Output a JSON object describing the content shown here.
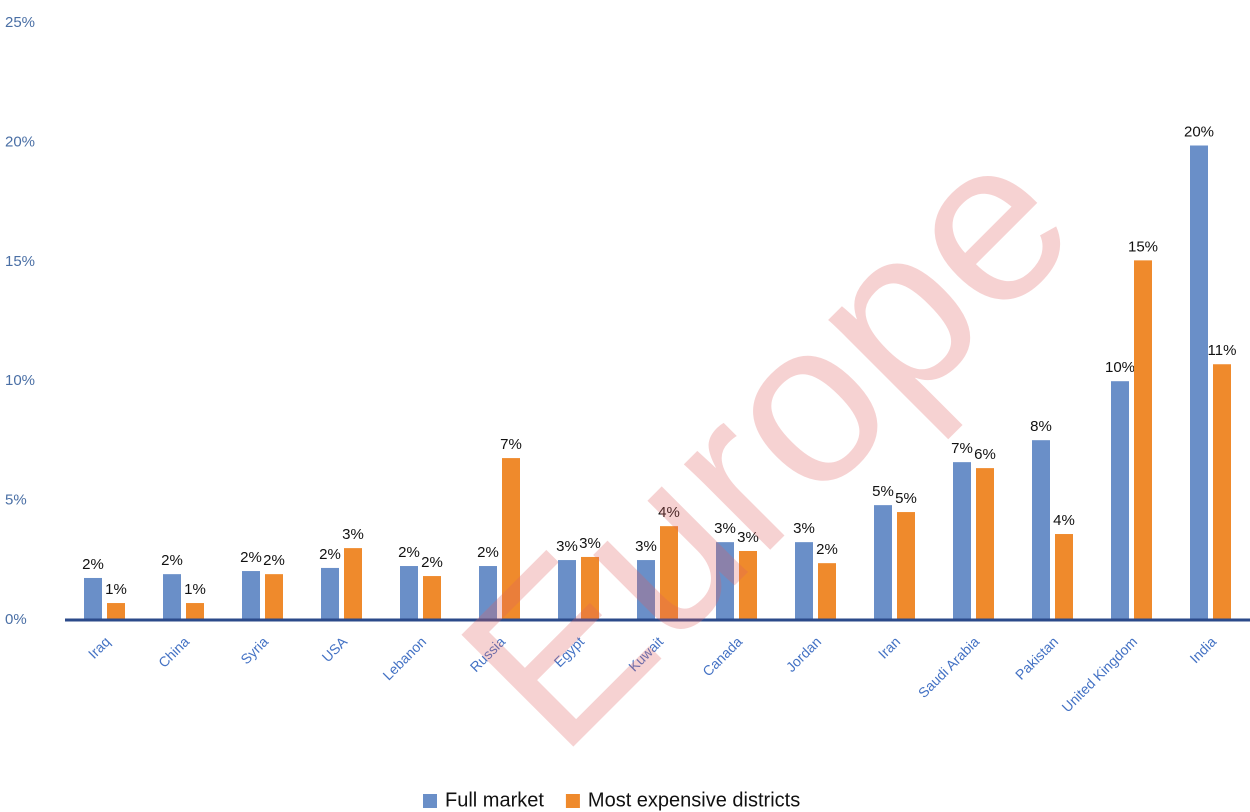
{
  "chart_data": {
    "type": "bar",
    "categories": [
      "Iraq",
      "China",
      "Syria",
      "USA",
      "Lebanon",
      "Russia",
      "Egypt",
      "Kuwait",
      "Canada",
      "Jordan",
      "Iran",
      "Saudi Arabia",
      "Pakistan",
      "United Kingdom",
      "India"
    ],
    "series": [
      {
        "name": "Full market",
        "color": "#6a8fc8",
        "values": [
          1.76,
          1.92,
          2.05,
          2.18,
          2.26,
          2.26,
          2.51,
          2.51,
          3.26,
          3.26,
          4.81,
          6.61,
          7.53,
          10.0,
          19.87
        ],
        "value_labels": [
          "2%",
          "2%",
          "2%",
          "2%",
          "2%",
          "2%",
          "3%",
          "3%",
          "3%",
          "3%",
          "5%",
          "7%",
          "8%",
          "10%",
          "20%"
        ]
      },
      {
        "name": "Most expensive districts",
        "color": "#ef8a2c",
        "values": [
          0.71,
          0.71,
          1.92,
          3.01,
          1.84,
          6.78,
          2.64,
          3.93,
          2.89,
          2.38,
          4.52,
          6.36,
          3.6,
          15.06,
          10.71
        ],
        "value_labels": [
          "1%",
          "1%",
          "2%",
          "3%",
          "2%",
          "7%",
          "3%",
          "4%",
          "3%",
          "2%",
          "5%",
          "6%",
          "4%",
          "15%",
          "11%"
        ]
      }
    ],
    "ylim": [
      0,
      25
    ],
    "yticks": [
      {
        "value": 0,
        "label": "0%"
      },
      {
        "value": 5,
        "label": "5%"
      },
      {
        "value": 10,
        "label": "10%"
      },
      {
        "value": 15,
        "label": "15%"
      },
      {
        "value": 20,
        "label": "20%"
      },
      {
        "value": 25,
        "label": "25%"
      }
    ],
    "grid": false,
    "legend": "bottom",
    "watermark": "Europe"
  }
}
